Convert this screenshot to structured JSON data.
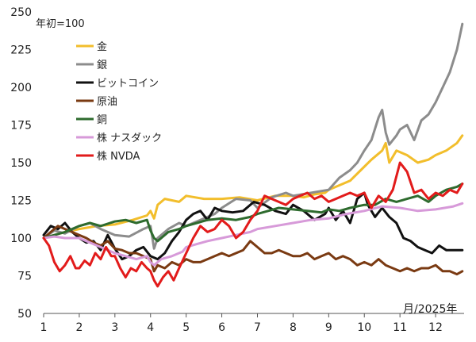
{
  "chart_data": {
    "type": "line",
    "title": "",
    "note": "年初=100",
    "xlabel": "月/2025年",
    "ylabel": "",
    "xlim": [
      1,
      12.8
    ],
    "ylim": [
      50,
      250
    ],
    "x_ticks": [
      1,
      2,
      3,
      4,
      5,
      6,
      7,
      8,
      9,
      10,
      11,
      12
    ],
    "x_tick_labels": [
      "1",
      "2",
      "3",
      "4",
      "5",
      "6",
      "7",
      "8",
      "9",
      "10",
      "11",
      "12"
    ],
    "y_ticks": [
      50,
      75,
      100,
      125,
      150,
      175,
      200,
      225,
      250
    ],
    "y_tick_labels": [
      "50",
      "75",
      "100",
      "125",
      "150",
      "175",
      "200",
      "225",
      "250"
    ],
    "grid": false,
    "legend_position": "top-left",
    "series": [
      {
        "name": "金",
        "color": "#F2BE2C",
        "x": [
          1.0,
          1.3,
          1.6,
          2.0,
          2.5,
          3.0,
          3.5,
          3.9,
          4.0,
          4.1,
          4.2,
          4.4,
          4.8,
          5.0,
          5.5,
          6.0,
          6.5,
          7.0,
          7.5,
          8.0,
          8.3,
          8.6,
          8.9,
          9.0,
          9.3,
          9.6,
          9.9,
          10.2,
          10.5,
          10.6,
          10.7,
          10.9,
          11.2,
          11.5,
          11.8,
          12.0,
          12.3,
          12.6,
          12.75
        ],
        "values": [
          100,
          102,
          104,
          106,
          108,
          109,
          112,
          115,
          118,
          113,
          122,
          126,
          124,
          128,
          126,
          126,
          127,
          125,
          128,
          128,
          127,
          129,
          130,
          132,
          135,
          138,
          145,
          152,
          158,
          163,
          150,
          158,
          155,
          150,
          152,
          155,
          158,
          163,
          168
        ]
      },
      {
        "name": "銀",
        "color": "#8C8C8C",
        "x": [
          1.0,
          1.3,
          1.6,
          2.0,
          2.3,
          2.6,
          3.0,
          3.4,
          3.8,
          4.0,
          4.1,
          4.2,
          4.5,
          4.8,
          5.0,
          5.4,
          5.8,
          6.0,
          6.4,
          6.8,
          7.0,
          7.4,
          7.8,
          8.0,
          8.5,
          9.0,
          9.3,
          9.6,
          9.8,
          10.0,
          10.2,
          10.4,
          10.5,
          10.6,
          10.7,
          10.9,
          11.0,
          11.2,
          11.4,
          11.6,
          11.8,
          12.0,
          12.2,
          12.4,
          12.6,
          12.75
        ],
        "values": [
          100,
          105,
          103,
          108,
          110,
          106,
          102,
          101,
          106,
          108,
          93,
          100,
          106,
          110,
          108,
          112,
          116,
          120,
          126,
          125,
          120,
          127,
          130,
          128,
          130,
          132,
          140,
          145,
          150,
          158,
          165,
          180,
          185,
          170,
          162,
          168,
          172,
          175,
          165,
          178,
          182,
          190,
          200,
          210,
          225,
          242
        ]
      },
      {
        "name": "ビットコイン",
        "color": "#111111",
        "x": [
          1.0,
          1.2,
          1.4,
          1.6,
          1.8,
          2.0,
          2.2,
          2.4,
          2.6,
          2.8,
          3.0,
          3.2,
          3.4,
          3.6,
          3.8,
          4.0,
          4.2,
          4.4,
          4.6,
          4.8,
          5.0,
          5.2,
          5.4,
          5.6,
          5.8,
          6.0,
          6.3,
          6.6,
          6.9,
          7.2,
          7.5,
          7.8,
          8.0,
          8.3,
          8.6,
          8.9,
          9.0,
          9.2,
          9.4,
          9.6,
          9.8,
          10.0,
          10.1,
          10.3,
          10.5,
          10.7,
          10.9,
          11.1,
          11.3,
          11.5,
          11.7,
          11.9,
          12.1,
          12.3,
          12.5,
          12.75
        ],
        "values": [
          102,
          108,
          106,
          110,
          104,
          100,
          97,
          98,
          92,
          102,
          93,
          86,
          88,
          92,
          94,
          88,
          86,
          90,
          98,
          104,
          112,
          116,
          118,
          112,
          120,
          118,
          117,
          118,
          124,
          122,
          118,
          116,
          122,
          118,
          112,
          116,
          120,
          112,
          118,
          110,
          126,
          130,
          122,
          114,
          120,
          114,
          110,
          100,
          98,
          94,
          92,
          90,
          95,
          92,
          92,
          92
        ]
      },
      {
        "name": "原油",
        "color": "#7A3A12",
        "x": [
          1.0,
          1.2,
          1.4,
          1.6,
          1.8,
          2.0,
          2.2,
          2.4,
          2.6,
          2.8,
          3.0,
          3.2,
          3.4,
          3.6,
          3.8,
          4.0,
          4.1,
          4.2,
          4.4,
          4.6,
          4.8,
          5.0,
          5.2,
          5.4,
          5.6,
          5.8,
          6.0,
          6.2,
          6.4,
          6.6,
          6.8,
          7.0,
          7.2,
          7.4,
          7.6,
          7.8,
          8.0,
          8.2,
          8.4,
          8.6,
          8.8,
          9.0,
          9.2,
          9.4,
          9.6,
          9.8,
          10.0,
          10.2,
          10.4,
          10.6,
          10.8,
          11.0,
          11.2,
          11.4,
          11.6,
          11.8,
          12.0,
          12.2,
          12.4,
          12.6,
          12.75
        ],
        "values": [
          100,
          104,
          108,
          106,
          104,
          102,
          100,
          97,
          95,
          98,
          93,
          92,
          90,
          90,
          88,
          86,
          78,
          82,
          80,
          84,
          82,
          86,
          84,
          84,
          86,
          88,
          90,
          88,
          90,
          92,
          98,
          94,
          90,
          90,
          92,
          90,
          88,
          88,
          90,
          86,
          88,
          90,
          86,
          88,
          86,
          82,
          84,
          82,
          86,
          82,
          80,
          78,
          80,
          78,
          80,
          80,
          82,
          78,
          78,
          76,
          78
        ]
      },
      {
        "name": "銅",
        "color": "#2E6B2E",
        "x": [
          1.0,
          1.3,
          1.6,
          2.0,
          2.3,
          2.6,
          3.0,
          3.3,
          3.6,
          3.9,
          4.0,
          4.1,
          4.2,
          4.5,
          4.8,
          5.0,
          5.3,
          5.6,
          6.0,
          6.4,
          6.8,
          7.0,
          7.3,
          7.6,
          8.0,
          8.4,
          8.8,
          9.0,
          9.3,
          9.6,
          10.0,
          10.3,
          10.6,
          10.9,
          11.2,
          11.5,
          11.8,
          12.0,
          12.3,
          12.6,
          12.75
        ],
        "values": [
          100,
          102,
          104,
          108,
          110,
          108,
          111,
          112,
          110,
          112,
          105,
          100,
          98,
          104,
          106,
          108,
          110,
          112,
          113,
          112,
          114,
          116,
          118,
          120,
          119,
          118,
          117,
          119,
          118,
          120,
          122,
          122,
          126,
          124,
          126,
          128,
          124,
          128,
          132,
          134,
          136
        ]
      },
      {
        "name": "株 ナスダック",
        "color": "#D79AD9",
        "x": [
          1.0,
          1.3,
          1.6,
          2.0,
          2.3,
          2.6,
          3.0,
          3.3,
          3.6,
          3.9,
          4.0,
          4.1,
          4.3,
          4.6,
          4.9,
          5.0,
          5.3,
          5.6,
          6.0,
          6.4,
          6.8,
          7.0,
          7.5,
          8.0,
          8.5,
          9.0,
          9.5,
          10.0,
          10.5,
          11.0,
          11.5,
          12.0,
          12.5,
          12.75
        ],
        "values": [
          100,
          101,
          100,
          100,
          97,
          94,
          90,
          88,
          86,
          88,
          84,
          82,
          86,
          88,
          91,
          94,
          96,
          98,
          100,
          102,
          104,
          106,
          108,
          110,
          112,
          113,
          116,
          118,
          121,
          120,
          118,
          119,
          121,
          123
        ]
      },
      {
        "name": "株 NVDA",
        "color": "#E21B1B",
        "x": [
          1.0,
          1.15,
          1.3,
          1.45,
          1.6,
          1.75,
          1.9,
          2.0,
          2.15,
          2.3,
          2.45,
          2.6,
          2.75,
          2.9,
          3.0,
          3.15,
          3.3,
          3.45,
          3.6,
          3.75,
          3.9,
          4.0,
          4.1,
          4.2,
          4.35,
          4.5,
          4.65,
          4.8,
          5.0,
          5.2,
          5.4,
          5.6,
          5.8,
          6.0,
          6.2,
          6.4,
          6.6,
          6.8,
          7.0,
          7.2,
          7.4,
          7.6,
          7.8,
          8.0,
          8.2,
          8.4,
          8.6,
          8.8,
          9.0,
          9.2,
          9.4,
          9.6,
          9.8,
          10.0,
          10.2,
          10.4,
          10.6,
          10.8,
          11.0,
          11.2,
          11.4,
          11.6,
          11.8,
          12.0,
          12.2,
          12.4,
          12.6,
          12.75
        ],
        "values": [
          100,
          95,
          84,
          78,
          82,
          88,
          80,
          80,
          85,
          82,
          90,
          86,
          94,
          88,
          88,
          80,
          74,
          80,
          78,
          84,
          80,
          78,
          72,
          68,
          74,
          78,
          72,
          80,
          90,
          100,
          108,
          104,
          106,
          112,
          108,
          100,
          104,
          112,
          118,
          128,
          126,
          124,
          122,
          126,
          128,
          130,
          126,
          128,
          124,
          126,
          128,
          130,
          128,
          130,
          120,
          128,
          124,
          132,
          150,
          144,
          130,
          132,
          126,
          130,
          128,
          132,
          130,
          136
        ]
      }
    ]
  }
}
